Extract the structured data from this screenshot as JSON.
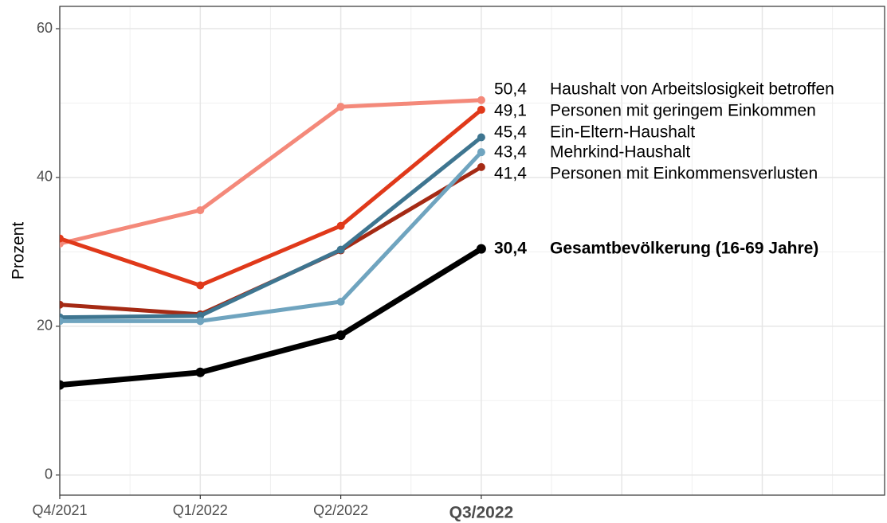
{
  "chart_data": {
    "type": "line",
    "y_label": "Prozent",
    "categories": [
      "Q4/2021",
      "Q1/2022",
      "Q2/2022",
      "Q3/2022"
    ],
    "ylim": [
      -2.7,
      63
    ],
    "yticks": [
      0,
      20,
      40,
      60
    ],
    "grid": true,
    "series": [
      {
        "name": "Haushalt von Arbeitslosigkeit betroffen",
        "color": "#f4897a",
        "values": [
          31.1,
          35.6,
          49.5,
          50.4
        ],
        "value_labels": [
          null,
          null,
          null,
          "50,4"
        ]
      },
      {
        "name": "Personen mit geringem Einkommen",
        "color": "#e0391a",
        "values": [
          31.8,
          25.5,
          33.5,
          49.1
        ],
        "value_labels": [
          null,
          null,
          null,
          "49,1"
        ]
      },
      {
        "name": "Ein-Eltern-Haushalt",
        "color": "#3e7590",
        "values": [
          21.2,
          21.4,
          30.3,
          45.4
        ],
        "value_labels": [
          null,
          null,
          null,
          "45,4"
        ]
      },
      {
        "name": "Mehrkind-Haushalt",
        "color": "#6fa4bf",
        "values": [
          20.7,
          20.7,
          23.3,
          43.4
        ],
        "value_labels": [
          null,
          null,
          null,
          "43,4"
        ]
      },
      {
        "name": "Personen mit Einkommensverlusten",
        "color": "#a52a14",
        "values": [
          22.9,
          21.6,
          30.2,
          41.4
        ],
        "value_labels": [
          null,
          null,
          null,
          "41,4"
        ]
      },
      {
        "name": "Gesamtbevölkerung (16-69 Jahre)",
        "color": "#000000",
        "values": [
          12.1,
          13.8,
          18.8,
          30.4
        ],
        "value_labels": [
          null,
          null,
          null,
          "30,4"
        ]
      }
    ]
  }
}
